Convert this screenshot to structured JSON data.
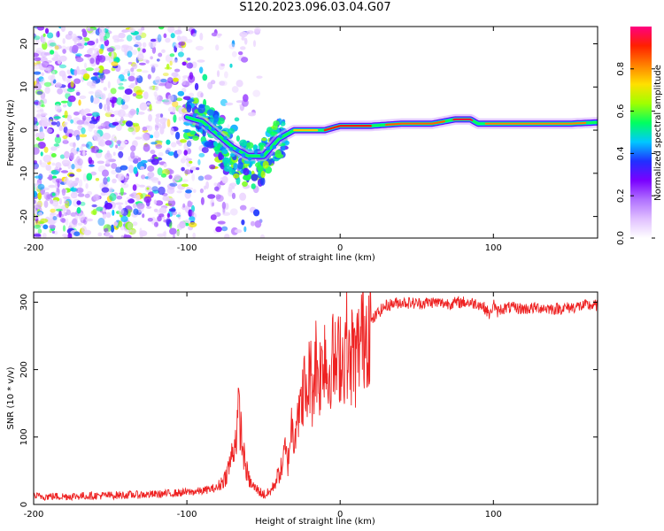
{
  "title": "S120.2023.096.03.04.G07",
  "chart_data": [
    {
      "type": "heatmap",
      "xlabel": "Height of straight line (km)",
      "ylabel": "Frequency (Hz)",
      "xlim": [
        -200,
        168
      ],
      "ylim": [
        -25,
        24
      ],
      "xticks": [
        -200,
        -100,
        0,
        100
      ],
      "yticks": [
        -20,
        -10,
        0,
        10,
        20
      ],
      "colorbar": {
        "label": "Normalized spectral amplitude",
        "range": [
          0,
          1
        ],
        "ticks": [
          0.0,
          0.2,
          0.4,
          0.6,
          0.8
        ],
        "colormap": [
          "#ffffff",
          "#e0c0ff",
          "#b070ff",
          "#7a00ff",
          "#2030ff",
          "#00c8ff",
          "#00ff60",
          "#a0ff00",
          "#ffe000",
          "#ff8000",
          "#ff2000",
          "#ff0080"
        ]
      },
      "ridge": {
        "x": [
          -100,
          -90,
          -80,
          -70,
          -60,
          -50,
          -45,
          -40,
          -35,
          -30,
          -20,
          -10,
          0,
          20,
          40,
          60,
          75,
          85,
          90,
          110,
          130,
          150,
          168
        ],
        "y": [
          3,
          2,
          -1,
          -4,
          -6,
          -6,
          -4,
          -2,
          -1,
          0,
          0,
          0,
          1,
          1,
          1.5,
          1.5,
          2.5,
          2.5,
          1.5,
          1.5,
          1.5,
          1.5,
          1.8
        ]
      }
    },
    {
      "type": "line",
      "xlabel": "Height of straight line (km)",
      "ylabel": "SNR (10 * v/v)",
      "xlim": [
        -200,
        168
      ],
      "ylim": [
        0,
        315
      ],
      "xticks": [
        -200,
        -100,
        0,
        100
      ],
      "yticks": [
        0,
        100,
        200,
        300
      ],
      "color": "#ee2222",
      "series": [
        {
          "x": [
            -200,
            -180,
            -160,
            -140,
            -120,
            -100,
            -90,
            -80,
            -75,
            -72,
            -70,
            -68,
            -66,
            -64,
            -62,
            -60,
            -58,
            -56,
            -54,
            -52,
            -50,
            -48,
            -46,
            -44,
            -42,
            -40,
            -38,
            -36,
            -34,
            -32,
            -30,
            -28,
            -26,
            -24,
            -22,
            -20,
            -18,
            -16,
            -14,
            -12,
            -10,
            -8,
            -6,
            -4,
            -2,
            0,
            2,
            4,
            6,
            8,
            10,
            12,
            14,
            16,
            18,
            20,
            25,
            30,
            35,
            40,
            50,
            60,
            70,
            80,
            90,
            95,
            98,
            100,
            102,
            105,
            110,
            120,
            130,
            140,
            150,
            160,
            168
          ],
          "y": [
            12,
            12,
            13,
            14,
            15,
            18,
            20,
            25,
            40,
            60,
            80,
            100,
            140,
            90,
            60,
            40,
            30,
            25,
            22,
            18,
            15,
            15,
            18,
            25,
            35,
            45,
            55,
            80,
            60,
            120,
            100,
            150,
            130,
            180,
            150,
            200,
            170,
            220,
            190,
            200,
            240,
            180,
            220,
            210,
            200,
            230,
            210,
            250,
            200,
            230,
            210,
            235,
            250,
            260,
            265,
            270,
            285,
            295,
            298,
            300,
            298,
            300,
            298,
            300,
            298,
            290,
            280,
            300,
            285,
            290,
            292,
            290,
            292,
            290,
            292,
            295,
            295
          ]
        }
      ]
    }
  ]
}
